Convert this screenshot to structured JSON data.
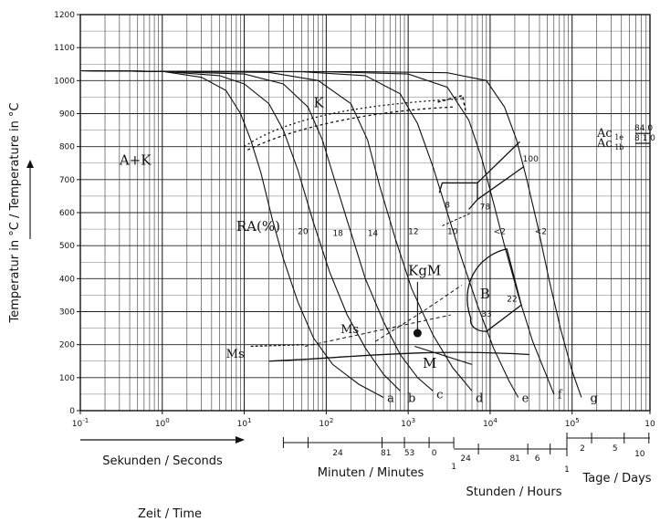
{
  "chart_data": {
    "type": "line",
    "x_scale": "log",
    "xlim_exp": [
      -1,
      5.95
    ],
    "ylim": [
      0,
      1200
    ],
    "y_ticks": [
      "0",
      "100",
      "200",
      "300",
      "400",
      "500",
      "600",
      "700",
      "800",
      "900",
      "1000",
      "1100",
      "1200"
    ],
    "x_ticks": [
      {
        "exp": -1,
        "label": "10-1"
      },
      {
        "exp": 0,
        "label": "10^0"
      },
      {
        "exp": 1,
        "label": "10^1"
      },
      {
        "exp": 2,
        "label": "10^2"
      },
      {
        "exp": 3,
        "label": "10^3"
      },
      {
        "exp": 4,
        "label": "10^4"
      },
      {
        "exp": 5,
        "label": "10^5"
      },
      {
        "exp": 5.95,
        "label": "10"
      }
    ],
    "ylabel": "Temperatur in °C / Temperature in °C",
    "xlabel_seconds": "Sekunden / Seconds",
    "xlabel_minutes": "Minuten / Minutes",
    "xlabel_hours": "Stunden / Hours",
    "xlabel_days": "Tage / Days",
    "xlabel_time": "Zeit / Time",
    "minutes_ticks": [
      {
        "label": "24",
        "x_sec": 60
      },
      {
        "label": "81",
        "x_sec": 480
      },
      {
        "label": "53",
        "x_sec": 900
      },
      {
        "label": "0",
        "x_sec": 1800
      },
      {
        "label": "1",
        "x_sec": 3600
      }
    ],
    "hours_ticks": [
      {
        "label": "24",
        "x_sec": 7200
      },
      {
        "label": "81",
        "x_sec": 28800
      },
      {
        "label": "6",
        "x_sec": 54000
      },
      {
        "label": "1",
        "x_sec": 86400
      }
    ],
    "days_ticks": [
      {
        "label": "2",
        "x_sec": 172800
      },
      {
        "label": "5",
        "x_sec": 432000
      },
      {
        "label": "10",
        "x_sec": 864000
      }
    ],
    "ac_labels": [
      {
        "text": "Ac",
        "sub": "1e",
        "value": "84 0",
        "y": 840
      },
      {
        "text": "Ac",
        "sub": "1b",
        "value": "8 1 0",
        "y": 810
      }
    ],
    "region_labels": [
      {
        "text": "A+K",
        "x_sec": 0.3,
        "y": 745
      },
      {
        "text": "K",
        "x_sec": 70,
        "y": 920
      },
      {
        "text": "RA(%)",
        "x_sec": 8,
        "y": 545
      },
      {
        "text": "KgM",
        "x_sec": 1000,
        "y": 410
      },
      {
        "text": "B",
        "x_sec": 7500,
        "y": 340
      },
      {
        "text": "Ms",
        "x_sec": 150,
        "y": 235
      },
      {
        "text": "Ms",
        "x_sec": 6,
        "y": 160
      },
      {
        "text": "M",
        "x_sec": 1500,
        "y": 130
      }
    ],
    "ra_values": [
      {
        "text": "20",
        "x_sec": 45,
        "y": 535
      },
      {
        "text": "18",
        "x_sec": 120,
        "y": 530
      },
      {
        "text": "14",
        "x_sec": 320,
        "y": 530
      },
      {
        "text": "12",
        "x_sec": 1000,
        "y": 535
      },
      {
        "text": "10",
        "x_sec": 3000,
        "y": 535
      },
      {
        "text": "<2",
        "x_sec": 11000,
        "y": 535
      },
      {
        "text": "<2",
        "x_sec": 35000,
        "y": 535
      }
    ],
    "other_values": [
      {
        "text": "100",
        "x_sec": 25000,
        "y": 755
      },
      {
        "text": "8",
        "x_sec": 2800,
        "y": 615
      },
      {
        "text": "78",
        "x_sec": 7500,
        "y": 610
      },
      {
        "text": "22",
        "x_sec": 16000,
        "y": 330
      },
      {
        "text": "33",
        "x_sec": 7800,
        "y": 285
      }
    ],
    "series": [
      {
        "name": "a",
        "points": [
          [
            0.1,
            1030
          ],
          [
            1,
            1028
          ],
          [
            3,
            1010
          ],
          [
            6,
            970
          ],
          [
            9,
            900
          ],
          [
            12,
            820
          ],
          [
            16,
            720
          ],
          [
            22,
            580
          ],
          [
            30,
            460
          ],
          [
            45,
            330
          ],
          [
            70,
            220
          ],
          [
            120,
            140
          ],
          [
            250,
            80
          ],
          [
            500,
            40
          ]
        ]
      },
      {
        "name": "b",
        "points": [
          [
            0.1,
            1030
          ],
          [
            1,
            1028
          ],
          [
            5,
            1015
          ],
          [
            10,
            990
          ],
          [
            20,
            930
          ],
          [
            30,
            850
          ],
          [
            45,
            730
          ],
          [
            70,
            570
          ],
          [
            110,
            420
          ],
          [
            180,
            290
          ],
          [
            300,
            190
          ],
          [
            500,
            110
          ],
          [
            800,
            60
          ]
        ]
      },
      {
        "name": "c",
        "points": [
          [
            0.1,
            1030
          ],
          [
            1,
            1028
          ],
          [
            10,
            1020
          ],
          [
            30,
            990
          ],
          [
            60,
            920
          ],
          [
            90,
            820
          ],
          [
            130,
            690
          ],
          [
            200,
            540
          ],
          [
            300,
            400
          ],
          [
            500,
            270
          ],
          [
            800,
            170
          ],
          [
            1300,
            100
          ],
          [
            2000,
            60
          ]
        ]
      },
      {
        "name": "d",
        "points": [
          [
            0.1,
            1030
          ],
          [
            1,
            1028
          ],
          [
            20,
            1025
          ],
          [
            80,
            1000
          ],
          [
            200,
            930
          ],
          [
            320,
            820
          ],
          [
            450,
            680
          ],
          [
            700,
            520
          ],
          [
            1100,
            370
          ],
          [
            2000,
            230
          ],
          [
            3500,
            130
          ],
          [
            6000,
            60
          ]
        ]
      },
      {
        "name": "e",
        "points": [
          [
            0.1,
            1030
          ],
          [
            1,
            1028
          ],
          [
            50,
            1027
          ],
          [
            300,
            1015
          ],
          [
            800,
            960
          ],
          [
            1300,
            870
          ],
          [
            2000,
            740
          ],
          [
            3000,
            600
          ],
          [
            4500,
            460
          ],
          [
            7000,
            320
          ],
          [
            11000,
            190
          ],
          [
            17000,
            90
          ],
          [
            22000,
            40
          ]
        ]
      },
      {
        "name": "f",
        "points": [
          [
            0.1,
            1030
          ],
          [
            1,
            1028
          ],
          [
            100,
            1027
          ],
          [
            1000,
            1020
          ],
          [
            3000,
            980
          ],
          [
            5500,
            880
          ],
          [
            8000,
            760
          ],
          [
            11000,
            630
          ],
          [
            15000,
            500
          ],
          [
            22000,
            350
          ],
          [
            33000,
            210
          ],
          [
            48000,
            110
          ],
          [
            60000,
            50
          ]
        ]
      },
      {
        "name": "g",
        "points": [
          [
            0.1,
            1030
          ],
          [
            1,
            1028
          ],
          [
            300,
            1027
          ],
          [
            3000,
            1024
          ],
          [
            9000,
            1000
          ],
          [
            15000,
            920
          ],
          [
            21000,
            820
          ],
          [
            28000,
            700
          ],
          [
            38000,
            560
          ],
          [
            52000,
            400
          ],
          [
            72000,
            250
          ],
          [
            100000,
            120
          ],
          [
            130000,
            40
          ]
        ]
      }
    ],
    "curve_labels": [
      {
        "text": "a",
        "x_sec": 500,
        "y": 35
      },
      {
        "text": "b",
        "x_sec": 900,
        "y": 35
      },
      {
        "text": "c",
        "x_sec": 2000,
        "y": 45
      },
      {
        "text": "d",
        "x_sec": 6000,
        "y": 35
      },
      {
        "text": "e",
        "x_sec": 22000,
        "y": 35
      },
      {
        "text": "f",
        "x_sec": 60000,
        "y": 45
      },
      {
        "text": "g",
        "x_sec": 150000,
        "y": 35
      }
    ]
  }
}
